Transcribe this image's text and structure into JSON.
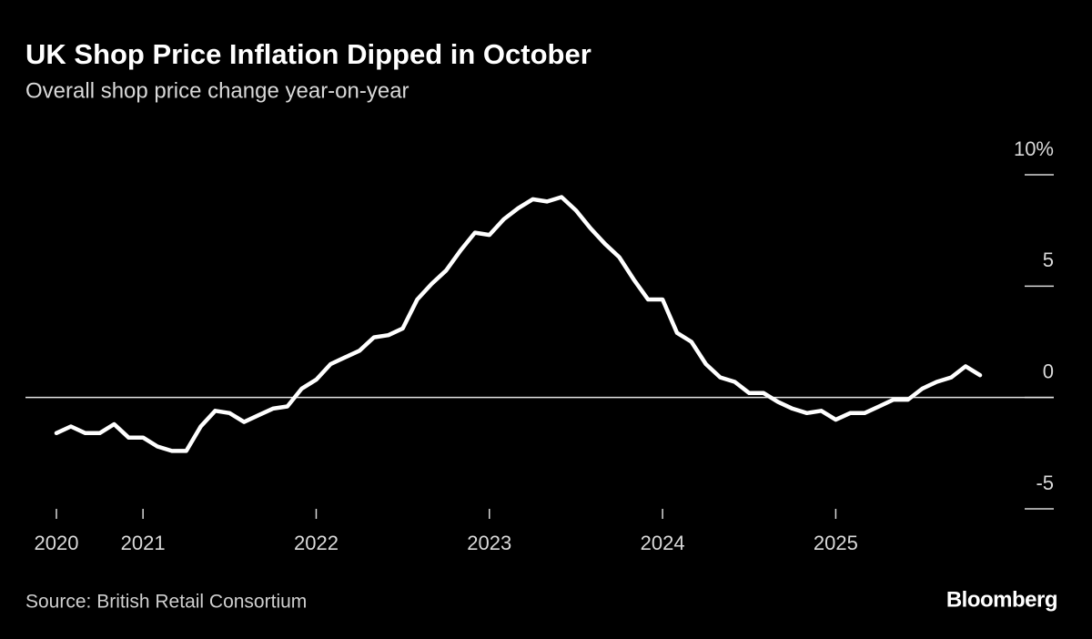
{
  "chart_data": {
    "type": "line",
    "title": "UK Shop Price Inflation Dipped in October",
    "subtitle": "Overall shop price change year-on-year",
    "source": "Source: British Retail Consortium",
    "brand": "Bloomberg",
    "categories": [
      "2020",
      null,
      null,
      null,
      null,
      null,
      "2021",
      null,
      null,
      null,
      null,
      null,
      null,
      null,
      null,
      null,
      null,
      null,
      "2022",
      null,
      null,
      null,
      null,
      null,
      null,
      null,
      null,
      null,
      null,
      null,
      "2023",
      null,
      null,
      null,
      null,
      null,
      null,
      null,
      null,
      null,
      null,
      null,
      "2024",
      null,
      null,
      null,
      null,
      null,
      null,
      null,
      null,
      null,
      null,
      null,
      "2025",
      null,
      null,
      null,
      null,
      null,
      null,
      null,
      null,
      null,
      null
    ],
    "values": [
      -1.6,
      -1.3,
      -1.6,
      -1.6,
      -1.2,
      -1.8,
      -1.8,
      -2.2,
      -2.4,
      -2.4,
      -1.3,
      -0.6,
      -0.7,
      -1.1,
      -0.8,
      -0.5,
      -0.4,
      0.4,
      0.8,
      1.5,
      1.8,
      2.1,
      2.7,
      2.8,
      3.1,
      4.4,
      5.1,
      5.7,
      6.6,
      7.4,
      7.3,
      8.0,
      8.5,
      8.9,
      8.8,
      9.0,
      8.4,
      7.6,
      6.9,
      6.3,
      5.3,
      4.4,
      4.4,
      2.9,
      2.5,
      1.5,
      0.9,
      0.7,
      0.2,
      0.2,
      -0.2,
      -0.5,
      -0.7,
      -0.6,
      -1.0,
      -0.7,
      -0.7,
      -0.4,
      -0.1,
      -0.1,
      0.4,
      0.7,
      0.9,
      1.4,
      1.0
    ],
    "color": "#ffffff",
    "ylim": [
      -5,
      10
    ],
    "yticks": [
      -5,
      0,
      5,
      {
        "value": 10,
        "label": "10%"
      }
    ]
  }
}
